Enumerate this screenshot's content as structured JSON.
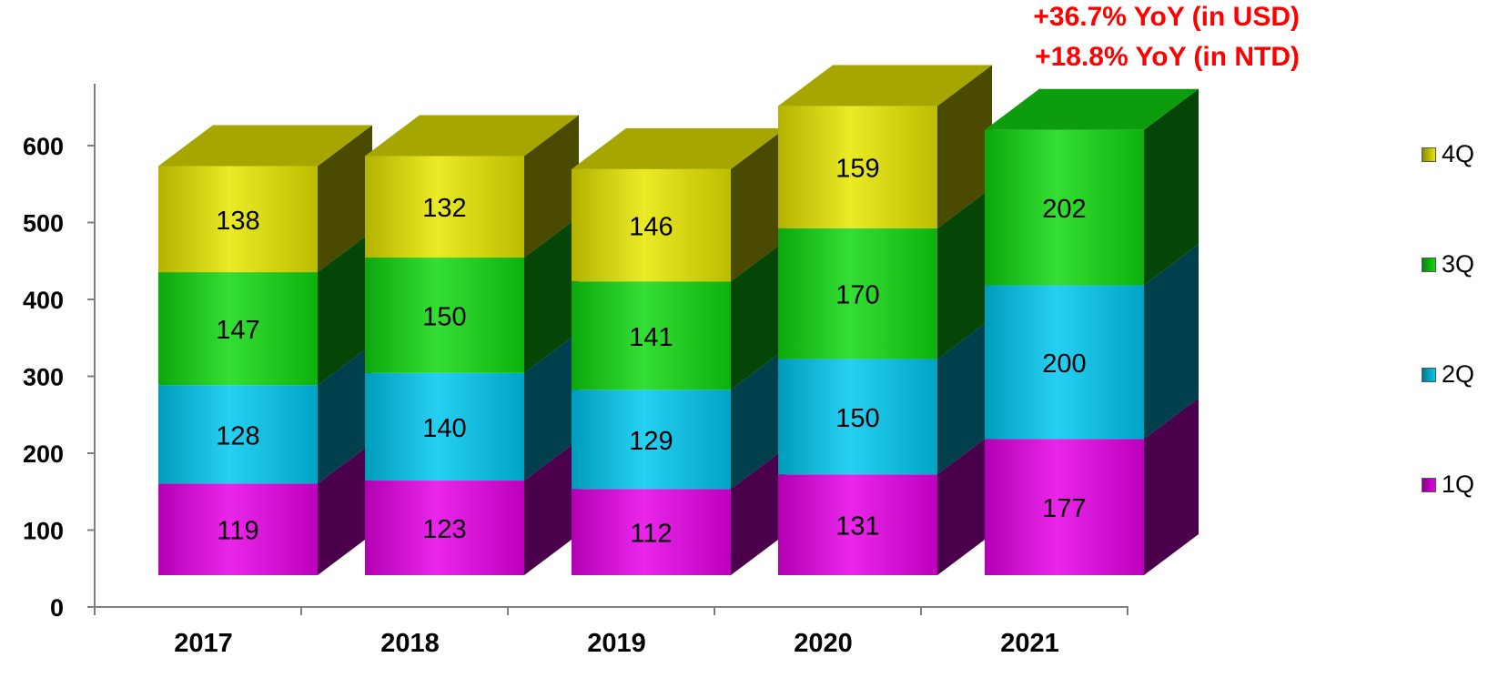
{
  "chart_data": {
    "type": "bar",
    "stacked": true,
    "style": "3d",
    "categories": [
      "2017",
      "2018",
      "2019",
      "2020",
      "2021"
    ],
    "series": [
      {
        "name": "1Q",
        "values": [
          119,
          123,
          112,
          131,
          177
        ],
        "color": "#e600e6"
      },
      {
        "name": "2Q",
        "values": [
          128,
          140,
          129,
          150,
          200
        ],
        "color": "#00c8f0"
      },
      {
        "name": "3Q",
        "values": [
          147,
          150,
          141,
          170,
          202
        ],
        "color": "#10d810"
      },
      {
        "name": "4Q",
        "values": [
          138,
          132,
          146,
          159,
          null
        ],
        "color": "#e6e600"
      }
    ],
    "yticks": [
      0,
      100,
      200,
      300,
      400,
      500,
      600
    ],
    "ylim": [
      0,
      680
    ],
    "grid": false,
    "legend_position": "right",
    "annotations": [
      "+36.7% YoY (in USD)",
      "+18.8% YoY (in NTD)"
    ],
    "annotation_color": "#ff0000"
  }
}
